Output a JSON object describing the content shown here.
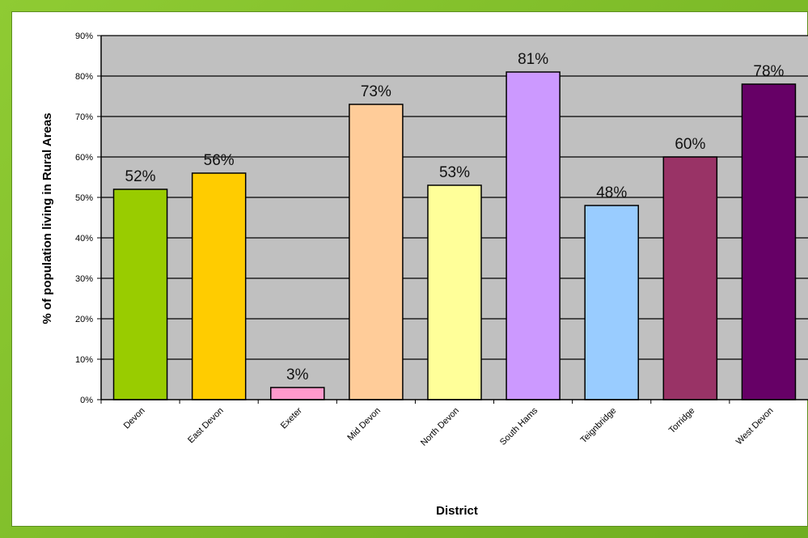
{
  "chart_data": {
    "type": "bar",
    "title": "",
    "xlabel": "District",
    "ylabel": "% of population living in Rural Areas",
    "ylim": [
      0,
      90
    ],
    "yticks": [
      0,
      10,
      20,
      30,
      40,
      50,
      60,
      70,
      80,
      90
    ],
    "ytick_labels": [
      "0%",
      "10%",
      "20%",
      "30%",
      "40%",
      "50%",
      "60%",
      "70%",
      "80%",
      "90%"
    ],
    "categories": [
      "Devon",
      "East Devon",
      "Exeter",
      "Mid Devon",
      "North Devon",
      "South Hams",
      "Teignbridge",
      "Torridge",
      "West Devon"
    ],
    "values": [
      52,
      56,
      3,
      73,
      53,
      81,
      48,
      60,
      78
    ],
    "data_labels": [
      "52%",
      "56%",
      "3%",
      "73%",
      "53%",
      "81%",
      "48%",
      "60%",
      "78%"
    ],
    "bar_colors": [
      "#99cc00",
      "#ffcc00",
      "#ff99cc",
      "#ffcc99",
      "#ffff99",
      "#cc99ff",
      "#99ccff",
      "#993366",
      "#660066"
    ],
    "grid": true,
    "plot_background": "#c0c0c0",
    "frame_color": "#7fbf2a"
  }
}
